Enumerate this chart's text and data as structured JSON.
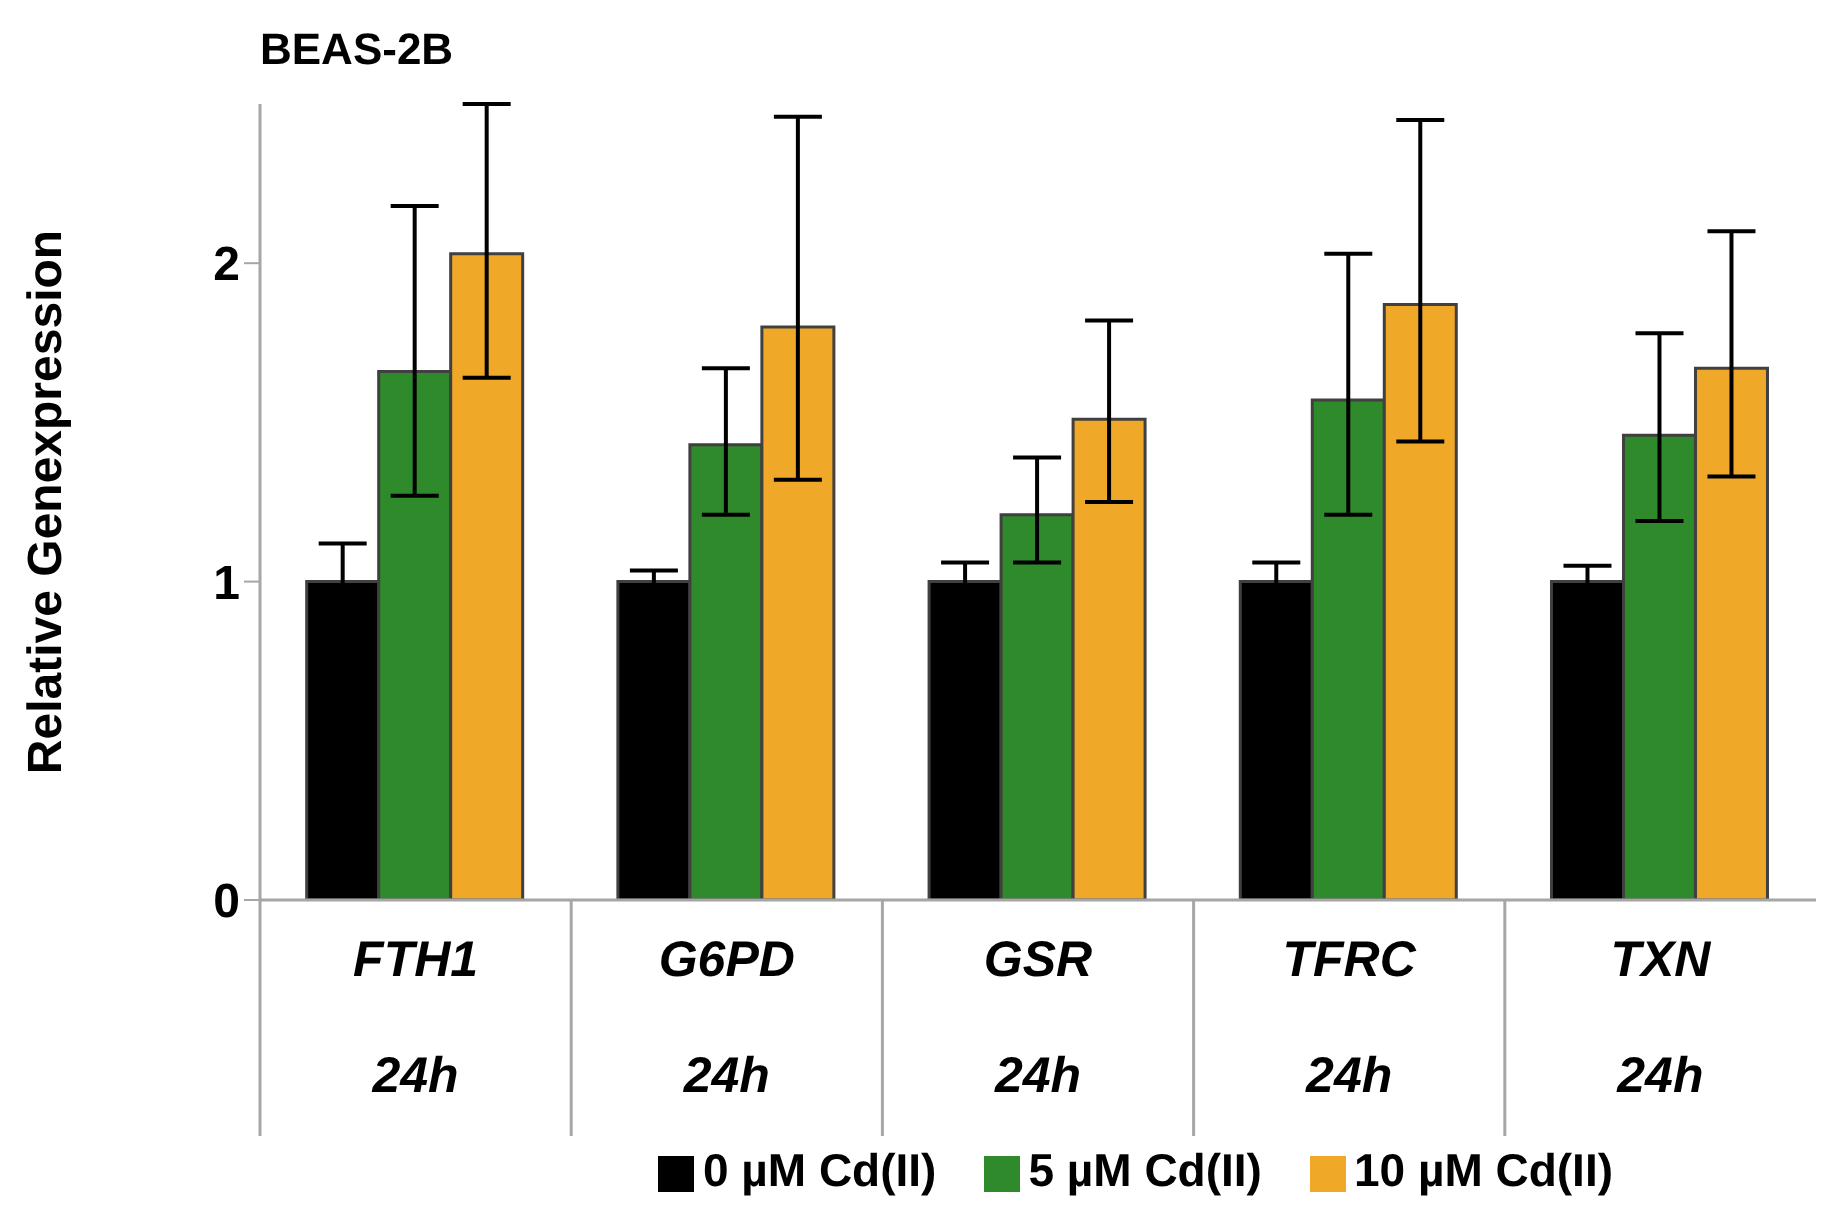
{
  "chart_data": {
    "type": "bar",
    "title": "BEAS-2B",
    "ylabel": "Relative Genexpression",
    "categories": [
      "FTH1\n24h",
      "G6PD\n24h",
      "GSR\n24h",
      "TFRC\n24h",
      "TXN\n24h"
    ],
    "series": [
      {
        "name": "0 µM Cd(II)",
        "color": "#000000",
        "values": [
          1.0,
          1.0,
          1.0,
          1.0,
          1.0
        ],
        "errors": [
          0.12,
          0.035,
          0.06,
          0.06,
          0.05
        ]
      },
      {
        "name": "5 µM Cd(II)",
        "color": "#2e8a2a",
        "values": [
          1.66,
          1.43,
          1.21,
          1.57,
          1.46
        ],
        "errors": [
          [
            1.27,
            2.18
          ],
          [
            1.21,
            1.67
          ],
          [
            1.06,
            1.39
          ],
          [
            1.21,
            2.03
          ],
          [
            1.19,
            1.78
          ]
        ]
      },
      {
        "name": "10 µM Cd(II)",
        "color": "#f0a828",
        "values": [
          2.03,
          1.8,
          1.51,
          1.87,
          1.67
        ],
        "errors": [
          [
            1.64,
            2.5
          ],
          [
            1.32,
            2.46
          ],
          [
            1.25,
            1.82
          ],
          [
            1.44,
            2.45
          ],
          [
            1.33,
            2.1
          ]
        ]
      }
    ],
    "ylim": [
      0,
      2.5
    ],
    "yticks": [
      0,
      1,
      2
    ],
    "grid": false,
    "legend": "bottom"
  }
}
